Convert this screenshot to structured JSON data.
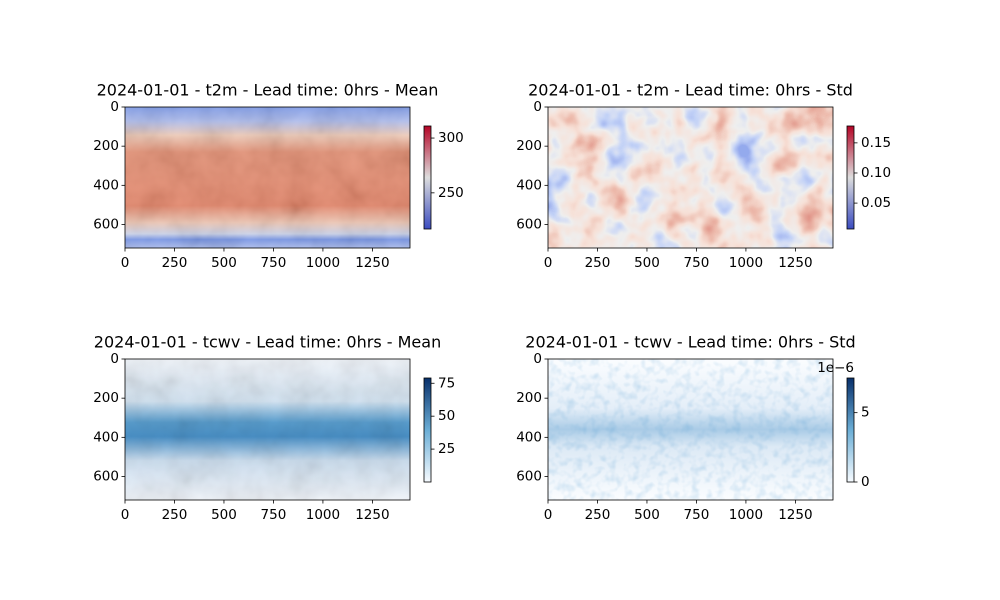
{
  "chart_data": [
    {
      "type": "image",
      "title": "2024-01-01 - t2m - Lead time: 0hrs - Mean",
      "xlim": [
        0,
        1440
      ],
      "ylim": [
        720,
        0
      ],
      "xticks": [
        0,
        250,
        500,
        750,
        1000,
        1250
      ],
      "yticks": [
        0,
        200,
        400,
        600
      ],
      "colorbar": {
        "clim": [
          217,
          311
        ],
        "ticks": [
          250,
          300
        ],
        "colors": [
          "#3b4cc0",
          "#dddddd",
          "#b40426"
        ]
      }
    },
    {
      "type": "image",
      "title": "2024-01-01 - t2m - Lead time: 0hrs - Std",
      "xlim": [
        0,
        1440
      ],
      "ylim": [
        720,
        0
      ],
      "xticks": [
        0,
        250,
        500,
        750,
        1000,
        1250
      ],
      "yticks": [
        0,
        200,
        400,
        600
      ],
      "colorbar": {
        "clim": [
          0.007,
          0.178
        ],
        "ticks": [
          0.05,
          0.1,
          0.15
        ],
        "tick_labels": [
          "0.05",
          "0.10",
          "0.15"
        ],
        "colors": [
          "#3b4cc0",
          "#dddddd",
          "#b40426"
        ]
      }
    },
    {
      "type": "image",
      "title": "2024-01-01 - tcwv - Lead time: 0hrs - Mean",
      "xlim": [
        0,
        1440
      ],
      "ylim": [
        720,
        0
      ],
      "xticks": [
        0,
        250,
        500,
        750,
        1000,
        1250
      ],
      "yticks": [
        0,
        200,
        400,
        600
      ],
      "colorbar": {
        "clim": [
          0,
          79
        ],
        "ticks": [
          25,
          50,
          75
        ],
        "colors": [
          "#f7fbff",
          "#6baed6",
          "#08306b"
        ]
      }
    },
    {
      "type": "image",
      "title": "2024-01-01 - tcwv - Lead time: 0hrs - Std",
      "xlim": [
        0,
        1440
      ],
      "ylim": [
        720,
        0
      ],
      "xticks": [
        0,
        250,
        500,
        750,
        1000,
        1250
      ],
      "yticks": [
        0,
        200,
        400,
        600
      ],
      "colorbar": {
        "clim": [
          0,
          7.5
        ],
        "ticks": [
          0,
          5
        ],
        "offset_label": "1e−6",
        "colors": [
          "#f7fbff",
          "#6baed6",
          "#08306b"
        ]
      }
    }
  ]
}
